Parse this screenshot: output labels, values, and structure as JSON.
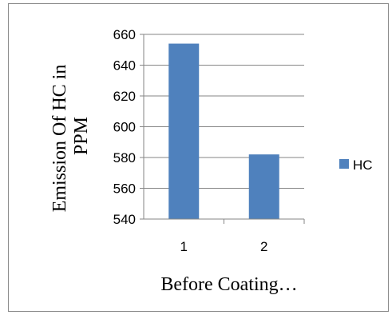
{
  "chart_data": {
    "type": "bar",
    "categories": [
      "1",
      "2"
    ],
    "series": [
      {
        "name": "HC",
        "values": [
          654,
          582
        ],
        "color": "#4F81BD"
      }
    ],
    "xlabel": "Before Coating…",
    "ylabel_lines": [
      "Emission Of HC in",
      "PPM"
    ],
    "ylim": [
      540,
      660
    ],
    "yticks": [
      "540",
      "560",
      "580",
      "600",
      "620",
      "640",
      "660"
    ],
    "grid": true,
    "legend_position": "right"
  }
}
